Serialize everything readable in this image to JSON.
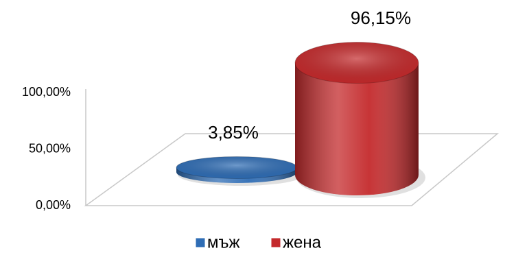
{
  "chart_data": {
    "type": "bar",
    "categories": [
      "мъж",
      "жена"
    ],
    "values": [
      3.85,
      96.15
    ],
    "value_labels": [
      "3,85%",
      "96,15%"
    ],
    "colors": [
      "#2f6db5",
      "#c42a2c"
    ],
    "ylim": [
      0,
      100
    ],
    "yticks": [
      {
        "value": 0,
        "label": "0,00%"
      },
      {
        "value": 50,
        "label": "50,00%"
      },
      {
        "value": 100,
        "label": "100,00%"
      }
    ],
    "legend": "bottom"
  }
}
